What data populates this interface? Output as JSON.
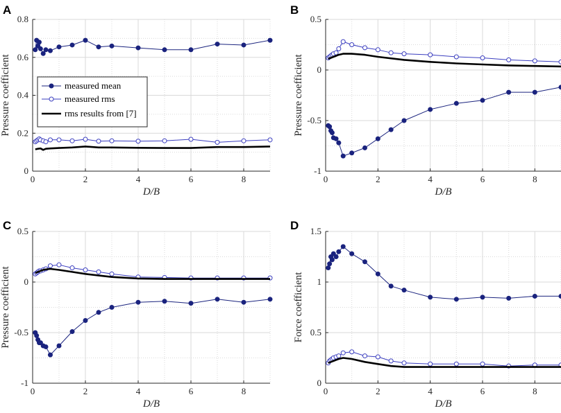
{
  "colors": {
    "mean": "#1a237e",
    "rms": "#3a3dbf",
    "ref": "#000000",
    "grid": "#d9d9d9",
    "axis": "#262626"
  },
  "legend": {
    "mean_label": "measured mean",
    "rms_label": "measured rms",
    "ref_label": "rms results from [7]"
  },
  "chart_data": [
    {
      "panel": "A",
      "type": "line",
      "xlabel": "D/B",
      "ylabel": "Pressure coefficient",
      "xlim": [
        0,
        9
      ],
      "ylim": [
        0,
        0.8
      ],
      "xticks": [
        0,
        2,
        4,
        6,
        8
      ],
      "xtick_labels": [
        "0",
        "2",
        "4",
        "6",
        "8"
      ],
      "yticks": [
        0,
        0.2,
        0.4,
        0.6,
        0.8
      ],
      "ytick_labels": [
        "0",
        "0.2",
        "0.4",
        "0.6",
        "0.8"
      ],
      "legend_position": "center-left",
      "series": [
        {
          "name": "measured mean",
          "x": [
            0.1,
            0.15,
            0.2,
            0.25,
            0.3,
            0.4,
            0.5,
            0.67,
            1,
            1.5,
            2,
            2.5,
            3,
            4,
            5,
            6,
            7,
            8,
            9
          ],
          "values": [
            0.64,
            0.69,
            0.66,
            0.68,
            0.645,
            0.62,
            0.64,
            0.635,
            0.655,
            0.665,
            0.69,
            0.655,
            0.66,
            0.65,
            0.64,
            0.64,
            0.67,
            0.665,
            0.69
          ]
        },
        {
          "name": "measured rms",
          "x": [
            0.1,
            0.15,
            0.2,
            0.25,
            0.3,
            0.4,
            0.5,
            0.67,
            1,
            1.5,
            2,
            2.5,
            3,
            4,
            5,
            6,
            7,
            8,
            9
          ],
          "values": [
            0.155,
            0.16,
            0.165,
            0.17,
            0.165,
            0.16,
            0.155,
            0.165,
            0.165,
            0.16,
            0.168,
            0.158,
            0.16,
            0.158,
            0.16,
            0.168,
            0.152,
            0.16,
            0.165
          ]
        },
        {
          "name": "rms results from [7]",
          "x": [
            0.1,
            0.2,
            0.3,
            0.4,
            0.5,
            0.67,
            1,
            1.5,
            2,
            2.5,
            3,
            4,
            5,
            6,
            7,
            8,
            9
          ],
          "values": [
            0.115,
            0.118,
            0.12,
            0.112,
            0.118,
            0.12,
            0.122,
            0.125,
            0.13,
            0.125,
            0.125,
            0.123,
            0.122,
            0.122,
            0.127,
            0.127,
            0.13
          ]
        }
      ]
    },
    {
      "panel": "B",
      "type": "line",
      "xlabel": "D/B",
      "ylabel": "Pressure coefficient",
      "xlim": [
        0,
        9
      ],
      "ylim": [
        -1,
        0.5
      ],
      "xticks": [
        0,
        2,
        4,
        6,
        8
      ],
      "xtick_labels": [
        "0",
        "2",
        "4",
        "6",
        "8"
      ],
      "yticks": [
        -1,
        -0.5,
        0,
        0.5
      ],
      "ytick_labels": [
        "-1",
        "-0.5",
        "0",
        "0.5"
      ],
      "series": [
        {
          "name": "measured mean",
          "x": [
            0.1,
            0.15,
            0.2,
            0.25,
            0.3,
            0.4,
            0.5,
            0.67,
            1,
            1.5,
            2,
            2.5,
            3,
            4,
            5,
            6,
            7,
            8,
            9
          ],
          "values": [
            -0.55,
            -0.56,
            -0.6,
            -0.62,
            -0.67,
            -0.68,
            -0.72,
            -0.85,
            -0.82,
            -0.77,
            -0.68,
            -0.59,
            -0.5,
            -0.39,
            -0.33,
            -0.3,
            -0.22,
            -0.22,
            -0.17
          ]
        },
        {
          "name": "measured rms",
          "x": [
            0.1,
            0.15,
            0.2,
            0.25,
            0.3,
            0.4,
            0.5,
            0.67,
            1,
            1.5,
            2,
            2.5,
            3,
            4,
            5,
            6,
            7,
            8,
            9
          ],
          "values": [
            0.12,
            0.13,
            0.14,
            0.15,
            0.16,
            0.17,
            0.21,
            0.28,
            0.25,
            0.22,
            0.2,
            0.17,
            0.16,
            0.15,
            0.13,
            0.12,
            0.1,
            0.09,
            0.08
          ]
        },
        {
          "name": "rms results from [7]",
          "x": [
            0.1,
            0.2,
            0.3,
            0.4,
            0.5,
            0.67,
            1,
            1.5,
            2,
            3,
            4,
            5,
            6,
            7,
            8,
            9
          ],
          "values": [
            0.11,
            0.12,
            0.13,
            0.14,
            0.15,
            0.16,
            0.16,
            0.15,
            0.13,
            0.1,
            0.08,
            0.065,
            0.055,
            0.045,
            0.04,
            0.035
          ]
        }
      ]
    },
    {
      "panel": "C",
      "type": "line",
      "xlabel": "D/B",
      "ylabel": "Pressure coefficient",
      "xlim": [
        0,
        9
      ],
      "ylim": [
        -1,
        0.5
      ],
      "xticks": [
        0,
        2,
        4,
        6,
        8
      ],
      "xtick_labels": [
        "0",
        "2",
        "4",
        "6",
        "8"
      ],
      "yticks": [
        -1,
        -0.5,
        0,
        0.5
      ],
      "ytick_labels": [
        "-1",
        "-0.5",
        "0",
        "0.5"
      ],
      "series": [
        {
          "name": "measured mean",
          "x": [
            0.1,
            0.15,
            0.2,
            0.25,
            0.3,
            0.4,
            0.5,
            0.67,
            1,
            1.5,
            2,
            2.5,
            3,
            4,
            5,
            6,
            7,
            8,
            9
          ],
          "values": [
            -0.5,
            -0.53,
            -0.57,
            -0.6,
            -0.6,
            -0.63,
            -0.64,
            -0.72,
            -0.63,
            -0.49,
            -0.38,
            -0.3,
            -0.25,
            -0.2,
            -0.19,
            -0.21,
            -0.17,
            -0.2,
            -0.17
          ]
        },
        {
          "name": "measured rms",
          "x": [
            0.1,
            0.15,
            0.2,
            0.25,
            0.3,
            0.4,
            0.5,
            0.67,
            1,
            1.5,
            2,
            2.5,
            3,
            4,
            5,
            6,
            7,
            8,
            9
          ],
          "values": [
            0.08,
            0.09,
            0.1,
            0.11,
            0.11,
            0.12,
            0.13,
            0.16,
            0.17,
            0.14,
            0.12,
            0.1,
            0.08,
            0.05,
            0.045,
            0.04,
            0.04,
            0.04,
            0.04
          ]
        },
        {
          "name": "rms results from [7]",
          "x": [
            0.1,
            0.2,
            0.3,
            0.4,
            0.5,
            0.67,
            1,
            1.5,
            2,
            3,
            4,
            5,
            6,
            7,
            8,
            9
          ],
          "values": [
            0.09,
            0.1,
            0.11,
            0.12,
            0.125,
            0.13,
            0.12,
            0.1,
            0.08,
            0.05,
            0.035,
            0.03,
            0.03,
            0.03,
            0.03,
            0.03
          ]
        }
      ]
    },
    {
      "panel": "D",
      "type": "line",
      "xlabel": "D/B",
      "ylabel": "Force coefficient",
      "xlim": [
        0,
        9
      ],
      "ylim": [
        0,
        1.5
      ],
      "xticks": [
        0,
        2,
        4,
        6,
        8
      ],
      "xtick_labels": [
        "0",
        "2",
        "4",
        "6",
        "8"
      ],
      "yticks": [
        0,
        0.5,
        1,
        1.5
      ],
      "ytick_labels": [
        "0",
        "0.5",
        "1",
        "1.5"
      ],
      "series": [
        {
          "name": "measured mean",
          "x": [
            0.1,
            0.15,
            0.2,
            0.25,
            0.3,
            0.4,
            0.5,
            0.67,
            1,
            1.5,
            2,
            2.5,
            3,
            4,
            5,
            6,
            7,
            8,
            9
          ],
          "values": [
            1.14,
            1.18,
            1.25,
            1.22,
            1.28,
            1.25,
            1.3,
            1.35,
            1.28,
            1.2,
            1.08,
            0.96,
            0.92,
            0.85,
            0.83,
            0.85,
            0.84,
            0.86,
            0.86
          ]
        },
        {
          "name": "measured rms",
          "x": [
            0.1,
            0.15,
            0.2,
            0.25,
            0.3,
            0.4,
            0.5,
            0.67,
            1,
            1.5,
            2,
            2.5,
            3,
            4,
            5,
            6,
            7,
            8,
            9
          ],
          "values": [
            0.2,
            0.22,
            0.23,
            0.24,
            0.25,
            0.26,
            0.27,
            0.3,
            0.31,
            0.27,
            0.26,
            0.22,
            0.2,
            0.19,
            0.19,
            0.19,
            0.17,
            0.18,
            0.18
          ]
        },
        {
          "name": "rms results from [7]",
          "x": [
            0.1,
            0.2,
            0.3,
            0.4,
            0.5,
            0.67,
            1,
            1.5,
            2,
            2.5,
            3,
            4,
            5,
            6,
            7,
            8,
            9
          ],
          "values": [
            0.2,
            0.21,
            0.22,
            0.23,
            0.24,
            0.25,
            0.24,
            0.21,
            0.19,
            0.17,
            0.16,
            0.16,
            0.16,
            0.16,
            0.16,
            0.16,
            0.16
          ]
        }
      ]
    }
  ]
}
